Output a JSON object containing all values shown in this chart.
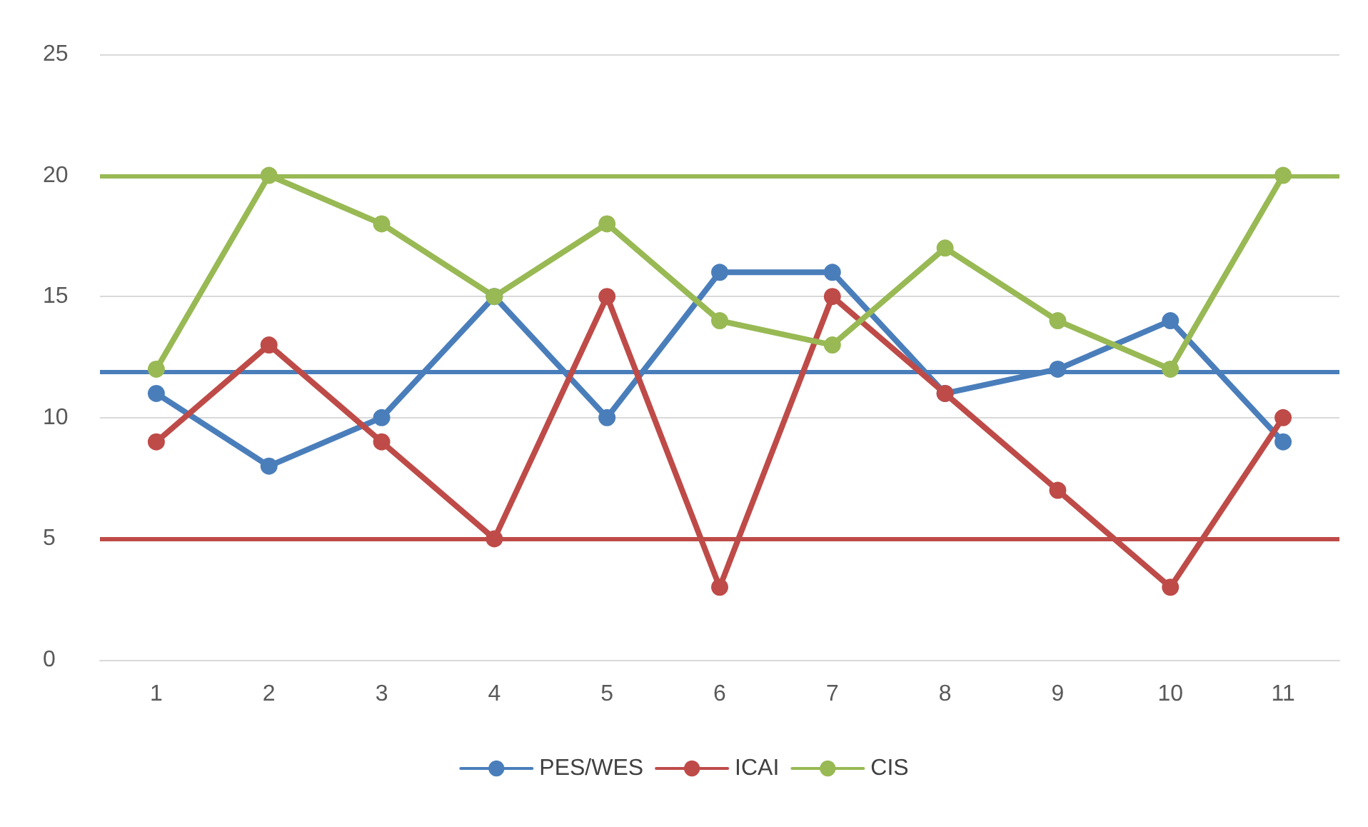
{
  "chart_data": {
    "type": "line",
    "categories": [
      "1",
      "2",
      "3",
      "4",
      "5",
      "6",
      "7",
      "8",
      "9",
      "10",
      "11"
    ],
    "series": [
      {
        "name": "PES/WES",
        "color": "#4a7ebb",
        "values": [
          11,
          8,
          10,
          15,
          10,
          16,
          16,
          11,
          12,
          14,
          9
        ]
      },
      {
        "name": "ICAI",
        "color": "#be4b48",
        "values": [
          9,
          13,
          9,
          5,
          15,
          3,
          15,
          11,
          7,
          3,
          10
        ]
      },
      {
        "name": "CIS",
        "color": "#98b954",
        "values": [
          12,
          20,
          18,
          15,
          18,
          14,
          13,
          17,
          14,
          12,
          20
        ]
      }
    ],
    "ref_lines": [
      {
        "axis": "y",
        "value": 20,
        "color": "#98b954"
      },
      {
        "axis": "y",
        "value": 11.9,
        "color": "#4a7ebb"
      },
      {
        "axis": "y",
        "value": 5,
        "color": "#be4b48"
      }
    ],
    "ylim": [
      0,
      25
    ],
    "yticks": [
      0,
      5,
      10,
      15,
      20,
      25
    ],
    "grid": "y",
    "legend": "bottom",
    "marker": "circle",
    "line_style": "solid"
  }
}
